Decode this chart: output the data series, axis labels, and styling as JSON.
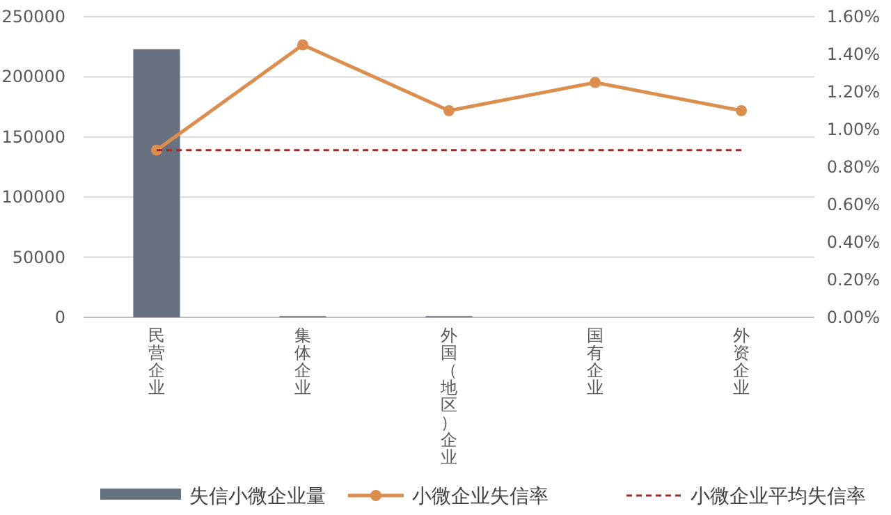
{
  "chart_data": {
    "type": "bar",
    "categories": [
      "民营企业",
      "集体企业",
      "外国（地区）企业",
      "国有企业",
      "外资企业"
    ],
    "series": [
      {
        "name": "失信小微企业量",
        "color": "#68717f",
        "values": [
          223000,
          1000,
          1000,
          0,
          0
        ]
      },
      {
        "name": "小微企业失信率",
        "type": "line",
        "axis": "y2",
        "color": "#dc8e4f",
        "marker": "circle",
        "line_style": "solid",
        "values": [
          0.89,
          1.45,
          1.1,
          1.25,
          1.1
        ]
      },
      {
        "name": "小微企业平均失信率",
        "type": "line",
        "axis": "y2",
        "color": "#9b2a2a",
        "marker": "none",
        "line_style": "dashed",
        "values": [
          0.89,
          0.89,
          0.89,
          0.89,
          0.89
        ]
      }
    ],
    "ylim": [
      0,
      250000
    ],
    "yticks": [
      0,
      50000,
      100000,
      150000,
      200000,
      250000
    ],
    "y2lim": [
      0,
      1.6
    ],
    "y2ticks": [
      {
        "value": 0,
        "label": "0.00%"
      },
      {
        "value": 0.2,
        "label": "0.20%"
      },
      {
        "value": 0.4,
        "label": "0.40%"
      },
      {
        "value": 0.6,
        "label": "0.60%"
      },
      {
        "value": 0.8,
        "label": "0.80%"
      },
      {
        "value": 1.0,
        "label": "1.00%"
      },
      {
        "value": 1.2,
        "label": "1.20%"
      },
      {
        "value": 1.4,
        "label": "1.40%"
      },
      {
        "value": 1.6,
        "label": "1.60%"
      }
    ],
    "grid": "y",
    "legend": "bottom"
  }
}
